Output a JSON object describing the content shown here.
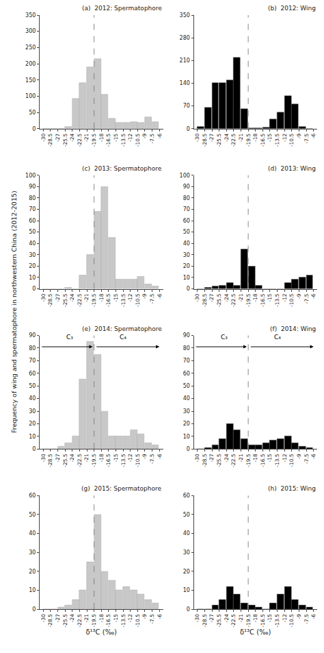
{
  "ylabel": "Frequency of wing and spermatophore in northwestern China (2012-2015)",
  "chart_data": [
    {
      "type": "histogram",
      "title": "(a)  2012: Spermatophore",
      "color": "#c8c8c8",
      "grid": false,
      "bins": [
        -30,
        -28.5,
        -27,
        -25.5,
        -24,
        -22.5,
        -21,
        -19.5,
        -18,
        -16.5,
        -15,
        -13.5,
        -12,
        -10.5,
        -9,
        -7.5,
        -6
      ],
      "values": [
        0,
        0,
        0,
        5,
        93,
        140,
        190,
        215,
        105,
        32,
        18,
        18,
        20,
        18,
        35,
        20
      ],
      "xlim": [
        -30.75,
        -5.25
      ],
      "xticks": [
        -30,
        -28.5,
        -27,
        -25.5,
        -24,
        -22.5,
        -21,
        -19.5,
        -18,
        -16.5,
        -15,
        -13.5,
        -12,
        -10.5,
        -9,
        -7.5,
        -6
      ],
      "ylim": [
        0,
        350
      ],
      "yticks": [
        0,
        50,
        100,
        150,
        200,
        250,
        300,
        350
      ],
      "vline": -19.5
    },
    {
      "type": "histogram",
      "title": "(b)  2012: Wing",
      "color": "#000000",
      "grid": false,
      "bins": [
        -30,
        -28.5,
        -27,
        -25.5,
        -24,
        -22.5,
        -21,
        -19.5,
        -18,
        -16.5,
        -15,
        -13.5,
        -12,
        -10.5,
        -9,
        -7.5,
        -6
      ],
      "values": [
        5,
        65,
        140,
        140,
        150,
        220,
        60,
        2,
        1,
        3,
        30,
        50,
        100,
        75,
        5,
        0
      ],
      "xlim": [
        -30.75,
        -5.25
      ],
      "xticks": [
        -30,
        -28.5,
        -27,
        -25.5,
        -24,
        -22.5,
        -21,
        -19.5,
        -18,
        -16.5,
        -15,
        -13.5,
        -12,
        -10.5,
        -9,
        -7.5,
        -6
      ],
      "ylim": [
        0,
        350
      ],
      "yticks": [
        0,
        70,
        140,
        210,
        280,
        350
      ],
      "vline": -19.5
    },
    {
      "type": "histogram",
      "title": "(c)  2013: Spermatophore",
      "color": "#c8c8c8",
      "grid": false,
      "bins": [
        -30,
        -28.5,
        -27,
        -25.5,
        -24,
        -22.5,
        -21,
        -19.5,
        -18,
        -16.5,
        -15,
        -13.5,
        -12,
        -10.5,
        -9,
        -7.5,
        -6
      ],
      "values": [
        0,
        0,
        0,
        1,
        0,
        12,
        30,
        68,
        90,
        45,
        8,
        8,
        8,
        11,
        4,
        2
      ],
      "xlim": [
        -30.75,
        -5.25
      ],
      "xticks": [
        -30,
        -28.5,
        -27,
        -25.5,
        -24,
        -22.5,
        -21,
        -19.5,
        -18,
        -16.5,
        -15,
        -13.5,
        -12,
        -10.5,
        -9,
        -7.5,
        -6
      ],
      "ylim": [
        0,
        100
      ],
      "yticks": [
        0,
        10,
        20,
        30,
        40,
        50,
        60,
        70,
        80,
        90,
        100
      ],
      "vline": -19.5
    },
    {
      "type": "histogram",
      "title": "(d)  2013: Wing",
      "color": "#000000",
      "grid": false,
      "bins": [
        -30,
        -28.5,
        -27,
        -25.5,
        -24,
        -22.5,
        -21,
        -19.5,
        -18,
        -16.5,
        -15,
        -13.5,
        -12,
        -10.5,
        -9,
        -7.5,
        -6
      ],
      "values": [
        0,
        1,
        2,
        3,
        5,
        3,
        35,
        20,
        3,
        0,
        0,
        0,
        5,
        8,
        10,
        12
      ],
      "xlim": [
        -30.75,
        -5.25
      ],
      "xticks": [
        -30,
        -28.5,
        -27,
        -25.5,
        -24,
        -22.5,
        -21,
        -19.5,
        -18,
        -16.5,
        -15,
        -13.5,
        -12,
        -10.5,
        -9,
        -7.5,
        -6
      ],
      "ylim": [
        0,
        100
      ],
      "yticks": [
        0,
        10,
        20,
        30,
        40,
        50,
        60,
        70,
        80,
        90,
        100
      ],
      "vline": -19.5
    },
    {
      "type": "histogram",
      "title": "(e)  2014: Spermatophore",
      "color": "#c8c8c8",
      "grid": false,
      "bins": [
        -30,
        -28.5,
        -27,
        -25.5,
        -24,
        -22.5,
        -21,
        -19.5,
        -18,
        -16.5,
        -15,
        -13.5,
        -12,
        -10.5,
        -9,
        -7.5,
        -6
      ],
      "values": [
        0,
        0,
        2,
        5,
        10,
        55,
        85,
        75,
        30,
        10,
        10,
        10,
        15,
        12,
        5,
        3
      ],
      "xlim": [
        -30.75,
        -5.25
      ],
      "xticks": [
        -30,
        -28.5,
        -27,
        -25.5,
        -24,
        -22.5,
        -21,
        -19.5,
        -18,
        -16.5,
        -15,
        -13.5,
        -12,
        -10.5,
        -9,
        -7.5,
        -6
      ],
      "ylim": [
        0,
        90
      ],
      "yticks": [
        0,
        10,
        20,
        30,
        40,
        50,
        60,
        70,
        80,
        90
      ],
      "vline": -19.5,
      "arrows": [
        {
          "x0": -30.5,
          "x1": -19.8,
          "y": 81
        },
        {
          "x0": -19.2,
          "x1": -6.0,
          "y": 81
        }
      ],
      "annotations": [
        {
          "text": "C₃",
          "x": -24.5,
          "y": 84.6
        },
        {
          "text": "C₄",
          "x": -13.5,
          "y": 84.6
        }
      ]
    },
    {
      "type": "histogram",
      "title": "(f)  2014: Wing",
      "color": "#000000",
      "grid": false,
      "bins": [
        -30,
        -28.5,
        -27,
        -25.5,
        -24,
        -22.5,
        -21,
        -19.5,
        -18,
        -16.5,
        -15,
        -13.5,
        -12,
        -10.5,
        -9,
        -7.5,
        -6
      ],
      "values": [
        0,
        1,
        3,
        8,
        20,
        15,
        8,
        3,
        3,
        5,
        7,
        8,
        10,
        5,
        2,
        1
      ],
      "xlim": [
        -30.75,
        -5.25
      ],
      "xticks": [
        -30,
        -28.5,
        -27,
        -25.5,
        -24,
        -22.5,
        -21,
        -19.5,
        -18,
        -16.5,
        -15,
        -13.5,
        -12,
        -10.5,
        -9,
        -7.5,
        -6
      ],
      "ylim": [
        0,
        90
      ],
      "yticks": [
        0,
        10,
        20,
        30,
        40,
        50,
        60,
        70,
        80,
        90
      ],
      "vline": -19.5,
      "arrows": [
        {
          "x0": -30.5,
          "x1": -19.8,
          "y": 81
        },
        {
          "x0": -19.2,
          "x1": -6.0,
          "y": 81
        }
      ],
      "annotations": [
        {
          "text": "C₃",
          "x": -24.5,
          "y": 84.6
        },
        {
          "text": "C₄",
          "x": -13.5,
          "y": 84.6
        }
      ]
    },
    {
      "type": "histogram",
      "title": "(g)  2015: Spermatophore",
      "color": "#c8c8c8",
      "grid": false,
      "bins": [
        -30,
        -28.5,
        -27,
        -25.5,
        -24,
        -22.5,
        -21,
        -19.5,
        -18,
        -16.5,
        -15,
        -13.5,
        -12,
        -10.5,
        -9,
        -7.5,
        -6
      ],
      "values": [
        0,
        0,
        1,
        2,
        5,
        10,
        25,
        50,
        20,
        15,
        10,
        12,
        10,
        8,
        5,
        3
      ],
      "xlim": [
        -30.75,
        -5.25
      ],
      "xticks": [
        -30,
        -28.5,
        -27,
        -25.5,
        -24,
        -22.5,
        -21,
        -19.5,
        -18,
        -16.5,
        -15,
        -13.5,
        -12,
        -10.5,
        -9,
        -7.5,
        -6
      ],
      "ylim": [
        0,
        60
      ],
      "yticks": [
        0,
        10,
        20,
        30,
        40,
        50,
        60
      ],
      "vline": -19.5,
      "xlabel": "δ¹³C (‰)"
    },
    {
      "type": "histogram",
      "title": "(h)  2015: Wing",
      "color": "#000000",
      "grid": false,
      "bins": [
        -30,
        -28.5,
        -27,
        -25.5,
        -24,
        -22.5,
        -21,
        -19.5,
        -18,
        -16.5,
        -15,
        -13.5,
        -12,
        -10.5,
        -9,
        -7.5,
        -6
      ],
      "values": [
        0,
        0,
        2,
        5,
        12,
        8,
        3,
        2,
        1,
        0,
        3,
        8,
        12,
        5,
        2,
        1
      ],
      "xlim": [
        -30.75,
        -5.25
      ],
      "xticks": [
        -30,
        -28.5,
        -27,
        -25.5,
        -24,
        -22.5,
        -21,
        -19.5,
        -18,
        -16.5,
        -15,
        -13.5,
        -12,
        -10.5,
        -9,
        -7.5,
        -6
      ],
      "ylim": [
        0,
        60
      ],
      "yticks": [
        0,
        10,
        20,
        30,
        40,
        50,
        60
      ],
      "vline": -19.5,
      "xlabel": "δ¹³C (‰)"
    }
  ]
}
